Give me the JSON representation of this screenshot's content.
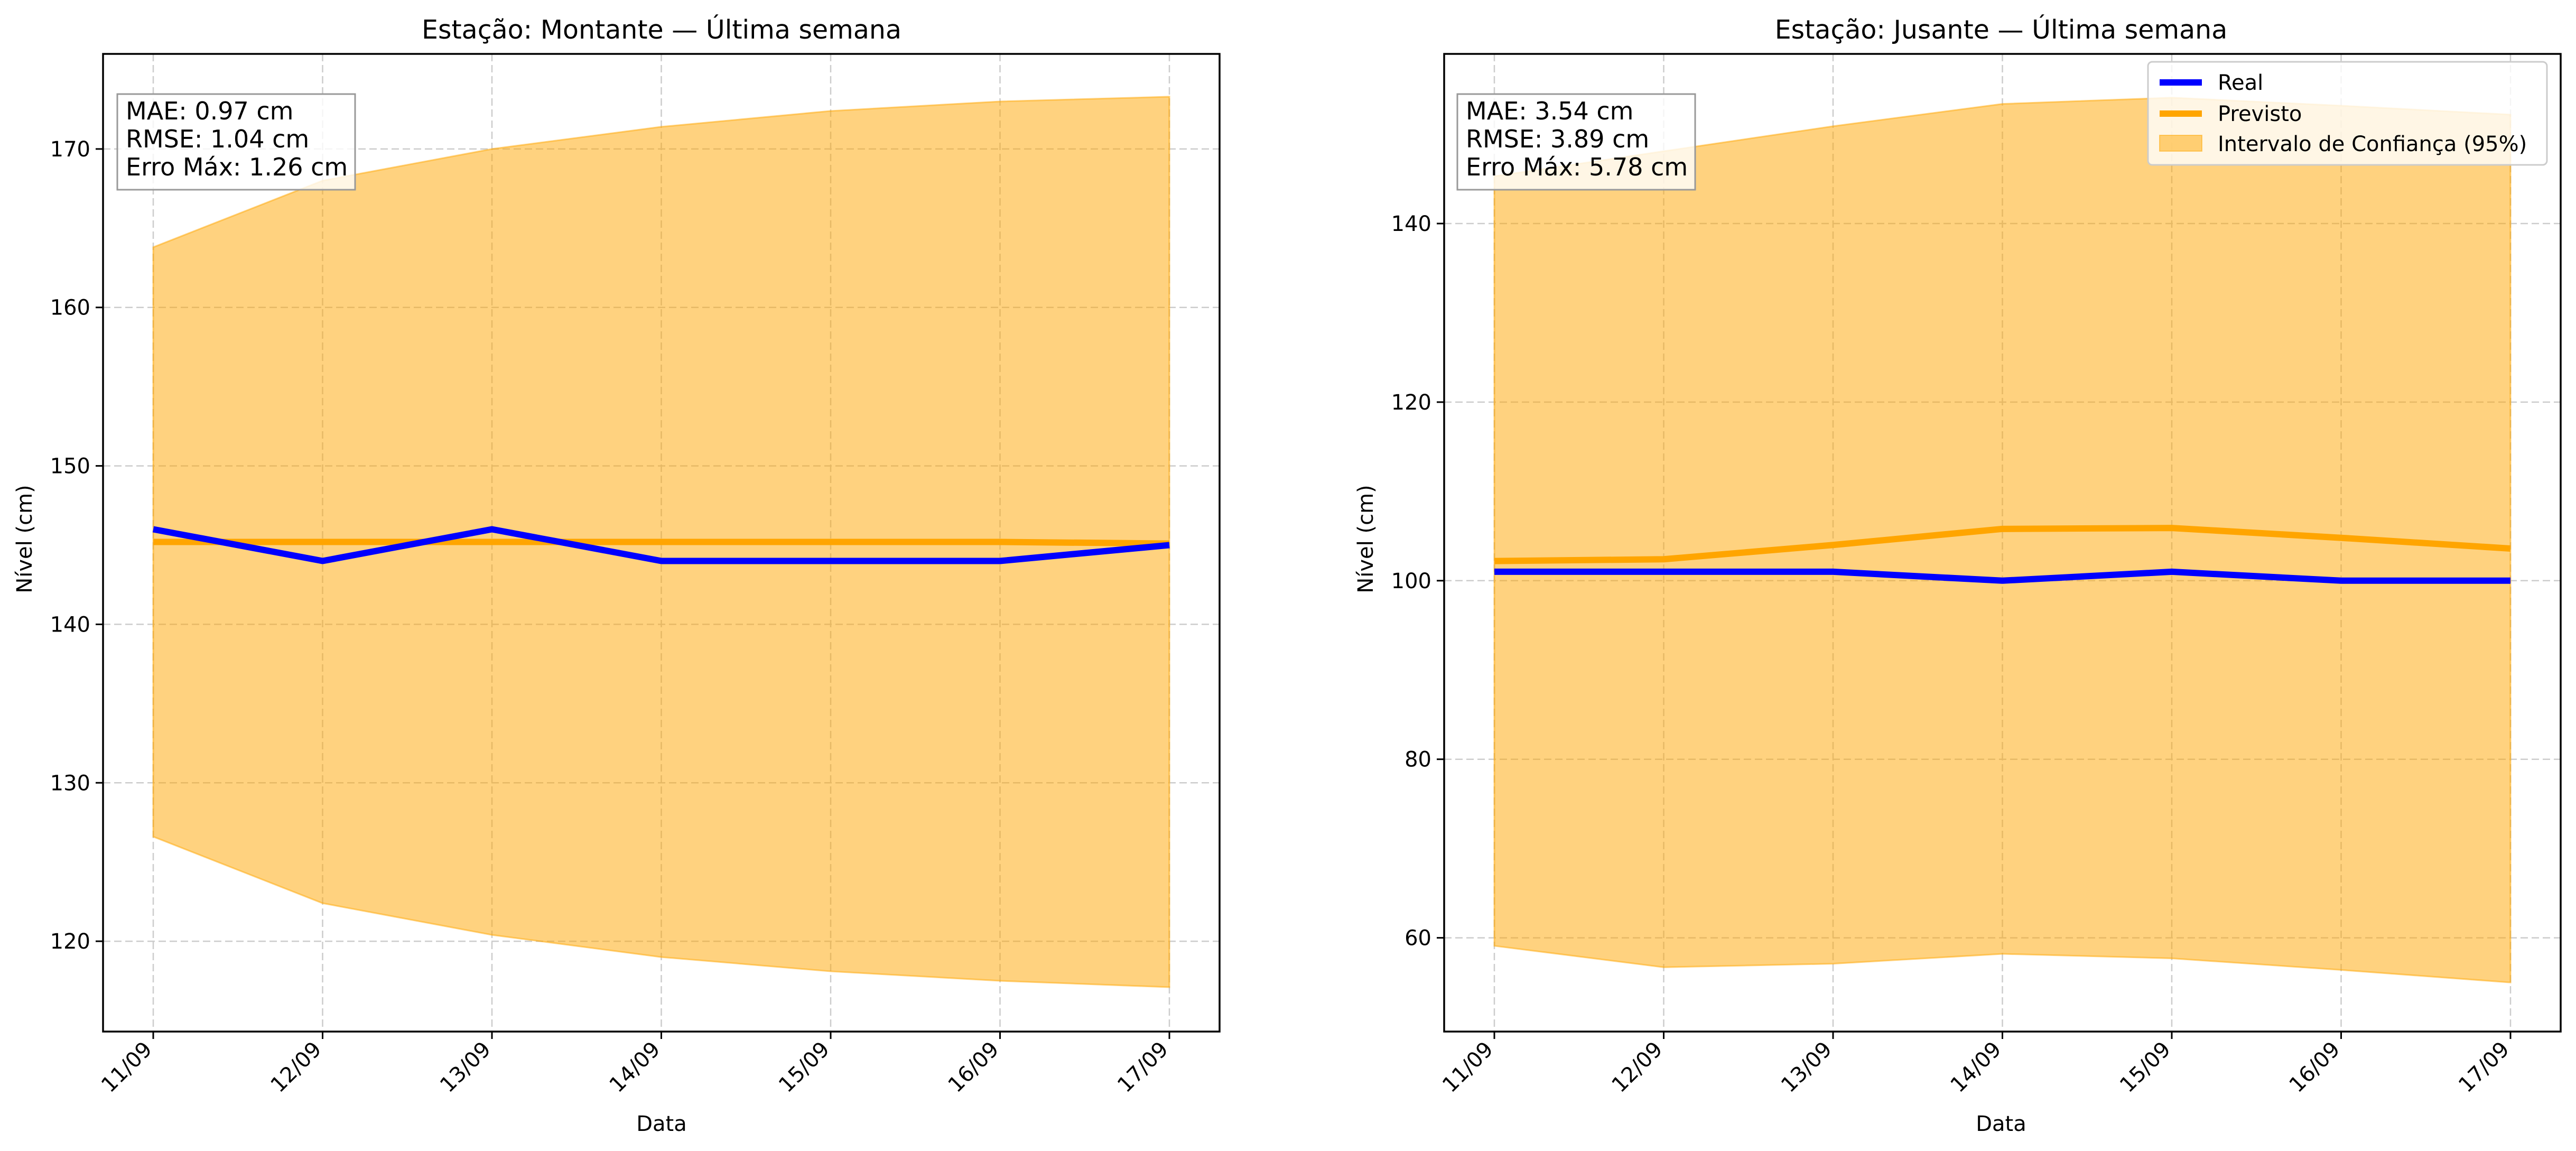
{
  "figure": {
    "background": "#ffffff"
  },
  "colors": {
    "real": "#0000ff",
    "previsto": "#ffa500",
    "interval": "#ffa500",
    "grid": "#cccccc"
  },
  "chart_data": [
    {
      "type": "line",
      "title": "Estação: Montante — Última semana",
      "xlabel": "Data",
      "ylabel": "Nível (cm)",
      "categories": [
        "11/09",
        "12/09",
        "13/09",
        "14/09",
        "15/09",
        "16/09",
        "17/09"
      ],
      "ylim": [
        114.3,
        176.0
      ],
      "yticks": [
        120,
        130,
        140,
        150,
        160,
        170
      ],
      "grid": true,
      "series": [
        {
          "name": "Real",
          "kind": "line",
          "color": "#0000ff",
          "values": [
            146,
            144,
            146,
            144,
            144,
            144,
            145
          ]
        },
        {
          "name": "Previsto",
          "kind": "line",
          "color": "#ffa500",
          "values": [
            145.2,
            145.2,
            145.2,
            145.2,
            145.2,
            145.2,
            145.1
          ]
        },
        {
          "name": "Intervalo de Confiança (95%)",
          "kind": "band",
          "color": "#ffa500",
          "lower": [
            126.6,
            122.4,
            120.4,
            119.0,
            118.1,
            117.5,
            117.1
          ],
          "upper": [
            163.8,
            168.0,
            170.0,
            171.4,
            172.4,
            173.0,
            173.3
          ]
        }
      ],
      "stats": [
        "MAE: 0.97 cm",
        "RMSE: 1.04 cm",
        "Erro Máx: 1.26 cm"
      ],
      "legend": null
    },
    {
      "type": "line",
      "title": "Estação: Jusante — Última semana",
      "xlabel": "Data",
      "ylabel": "Nível (cm)",
      "categories": [
        "11/09",
        "12/09",
        "13/09",
        "14/09",
        "15/09",
        "16/09",
        "17/09"
      ],
      "ylim": [
        49.5,
        159.0
      ],
      "yticks": [
        60,
        80,
        100,
        120,
        140
      ],
      "grid": true,
      "series": [
        {
          "name": "Real",
          "kind": "line",
          "color": "#0000ff",
          "values": [
            101,
            101,
            101,
            100,
            101,
            100,
            100
          ]
        },
        {
          "name": "Previsto",
          "kind": "line",
          "color": "#ffa500",
          "values": [
            102.2,
            102.4,
            104.0,
            105.8,
            105.9,
            104.8,
            103.6
          ]
        },
        {
          "name": "Intervalo de Confiança (95%)",
          "kind": "band",
          "color": "#ffa500",
          "lower": [
            59.1,
            56.7,
            57.1,
            58.2,
            57.7,
            56.4,
            55.0
          ],
          "upper": [
            145.3,
            148.1,
            150.9,
            153.4,
            154.1,
            153.2,
            152.2
          ]
        }
      ],
      "stats": [
        "MAE: 3.54 cm",
        "RMSE: 3.89 cm",
        "Erro Máx: 5.78 cm"
      ],
      "legend": {
        "position": "upper right",
        "entries": [
          "Real",
          "Previsto",
          "Intervalo de Confiança (95%)"
        ]
      }
    }
  ]
}
